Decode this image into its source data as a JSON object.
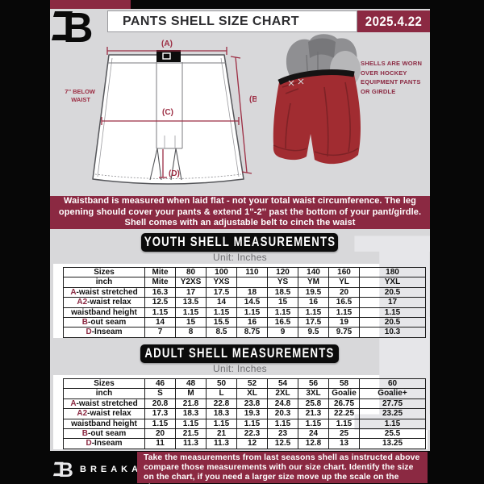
{
  "colors": {
    "maroon": "#8b2942",
    "diagram_accent": "#9c2d43",
    "frame_black": "#070707",
    "background_gray": "#d8d8da",
    "shell_red": "#a12c31",
    "pad_gray": "#909093",
    "watermark_gray": "#e6e6e9"
  },
  "header": {
    "title": "PANTS SHELL SIZE CHART",
    "date": "2025.4.22"
  },
  "diagram": {
    "label_a": "(A)",
    "label_b": "(B)",
    "label_c": "(C)",
    "label_d": "(D)",
    "note_line1": "7'' BELOW",
    "note_line2": "WAIST"
  },
  "photo_note": {
    "line1": "SHELLS ARE WORN",
    "line2": "OVER HOCKEY",
    "line3": "EQUIPMENT PANTS",
    "line4": "OR GIRDLE"
  },
  "info_banner": {
    "line1": "Waistband is measured when laid flat - not your total waist circumference. The leg",
    "line2": "opening should cover your pants & extend 1''-2'' past the bottom of your pant/girdle.",
    "line3": "Shell comes with an adjustable belt to cinch the waist"
  },
  "youth": {
    "title": "YOUTH SHELL MEASUREMENTS",
    "unit": "Unit: Inches",
    "rows": [
      {
        "accent": "",
        "label": "Sizes",
        "values": [
          "Mite",
          "80",
          "100",
          "110",
          "120",
          "140",
          "160",
          "180"
        ]
      },
      {
        "accent": "",
        "label": "inch",
        "values": [
          "Mite",
          "Y2XS",
          "YXS",
          "",
          "YS",
          "YM",
          "YL",
          "YXL"
        ]
      },
      {
        "accent": "A",
        "label": "-waist stretched",
        "values": [
          "16.3",
          "17",
          "17.5",
          "18",
          "18.5",
          "19.5",
          "20",
          "20.5"
        ]
      },
      {
        "accent": "A2",
        "label": "-waist relax",
        "values": [
          "12.5",
          "13.5",
          "14",
          "14.5",
          "15",
          "16",
          "16.5",
          "17"
        ]
      },
      {
        "accent": "",
        "label": "waistband height",
        "values": [
          "1.15",
          "1.15",
          "1.15",
          "1.15",
          "1.15",
          "1.15",
          "1.15",
          "1.15"
        ]
      },
      {
        "accent": "B",
        "label": "-out seam",
        "values": [
          "14",
          "15",
          "15.5",
          "16",
          "16.5",
          "17.5",
          "19",
          "20.5"
        ]
      },
      {
        "accent": "D",
        "label": "-Inseam",
        "values": [
          "7",
          "8",
          "8.5",
          "8.75",
          "9",
          "9.5",
          "9.75",
          "10.3"
        ]
      }
    ]
  },
  "adult": {
    "title": "ADULT SHELL MEASUREMENTS",
    "unit": "Unit: Inches",
    "rows": [
      {
        "accent": "",
        "label": "Sizes",
        "values": [
          "46",
          "48",
          "50",
          "52",
          "54",
          "56",
          "58",
          "60"
        ]
      },
      {
        "accent": "",
        "label": "inch",
        "values": [
          "S",
          "M",
          "L",
          "XL",
          "2XL",
          "3XL",
          "Goalie",
          "Goalie+"
        ]
      },
      {
        "accent": "A",
        "label": "-waist stretched",
        "values": [
          "20.8",
          "21.8",
          "22.8",
          "23.8",
          "24.8",
          "25.8",
          "26.75",
          "27.75"
        ]
      },
      {
        "accent": "A2",
        "label": "-waist relax",
        "values": [
          "17.3",
          "18.3",
          "18.3",
          "19.3",
          "20.3",
          "21.3",
          "22.25",
          "23.25"
        ]
      },
      {
        "accent": "",
        "label": "waistband height",
        "values": [
          "1.15",
          "1.15",
          "1.15",
          "1.15",
          "1.15",
          "1.15",
          "1.15",
          "1.15"
        ]
      },
      {
        "accent": "B",
        "label": "-out seam",
        "values": [
          "20",
          "21.5",
          "21",
          "22.3",
          "23",
          "24",
          "25",
          "25.5"
        ]
      },
      {
        "accent": "D",
        "label": "-Inseam",
        "values": [
          "11",
          "11.3",
          "11.3",
          "12",
          "12.5",
          "12.8",
          "13",
          "13.25"
        ]
      }
    ]
  },
  "footer": {
    "brand": "BREAKAWAY",
    "note_line1": "Take the measurements from last seasons shell as instructed above",
    "note_line2": "compare those measurements with our size chart. Identify the size",
    "note_line3": "on the chart, if you need a larger size move up the scale on the chart"
  },
  "watermark_letter": "B"
}
